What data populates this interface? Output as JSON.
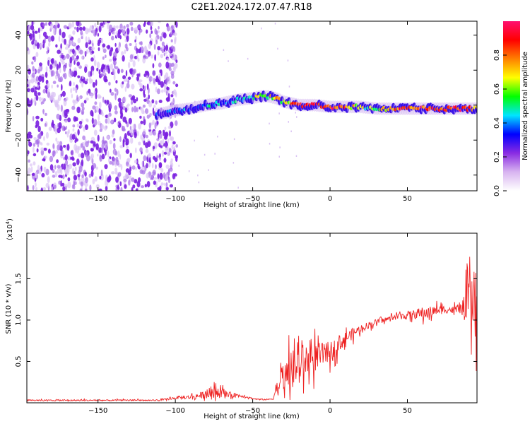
{
  "title": "C2E1.2024.172.07.47.R18",
  "chart_data": [
    {
      "type": "heatmap",
      "xlabel": "Height of straight line (km)",
      "ylabel": "Frequency (Hz)",
      "xlim": [
        -196,
        95
      ],
      "ylim": [
        -49,
        48
      ],
      "xticks": [
        -150,
        -100,
        -50,
        0,
        50
      ],
      "yticks": [
        -40,
        -20,
        0,
        20,
        40
      ],
      "colorbar": {
        "label": "Normalized spectral amplitude",
        "range": [
          0.0,
          1.0
        ],
        "ticks": [
          0.0,
          0.2,
          0.4,
          0.6,
          0.8
        ],
        "colormap": [
          "#ffffff",
          "#d8b4f0",
          "#8a2be2",
          "#0000ff",
          "#00e5ff",
          "#00ff00",
          "#ffff00",
          "#ff8000",
          "#ff0000",
          "#ff1070"
        ]
      },
      "ridge": {
        "x": [
          -120,
          -110,
          -100,
          -90,
          -80,
          -70,
          -60,
          -50,
          -45,
          -40,
          -35,
          -30,
          -20,
          -10,
          0,
          10,
          20,
          30,
          40,
          50,
          60,
          70,
          80,
          90,
          95
        ],
        "y": [
          -6,
          -5,
          -3,
          -2,
          0,
          1,
          3,
          4,
          5,
          5,
          4,
          2,
          0,
          0,
          -1,
          -1,
          -1,
          -2,
          -2,
          -2,
          -2,
          -2,
          -2,
          -2,
          -2
        ],
        "amplitude": [
          0.25,
          0.3,
          0.35,
          0.4,
          0.42,
          0.45,
          0.45,
          0.55,
          0.7,
          0.6,
          0.75,
          0.6,
          0.95,
          0.95,
          0.9,
          0.85,
          0.6,
          0.6,
          0.85,
          0.85,
          0.9,
          0.9,
          0.95,
          0.9,
          0.6
        ]
      },
      "noise_region": {
        "x_from": -196,
        "x_to": -105,
        "amplitude": 0.15
      }
    },
    {
      "type": "line",
      "xlabel": "Height of straight line (km)",
      "ylabel": "SNR (10 * v/v)",
      "y_multiplier": "(x10",
      "y_multiplier_exp": "4",
      "xlim": [
        -196,
        95
      ],
      "ylim": [
        0,
        2.05
      ],
      "xticks": [
        -150,
        -100,
        -50,
        0,
        50
      ],
      "yticks": [
        0.5,
        1.0,
        1.5
      ],
      "color": "#ee2222",
      "series": [
        {
          "x": [
            -196,
            -150,
            -110,
            -100,
            -90,
            -80,
            -75,
            -70,
            -65,
            -60,
            -55,
            -50,
            -45,
            -40,
            -37,
            -35,
            -30,
            -25,
            -20,
            -15,
            -10,
            -5,
            0,
            5,
            10,
            15,
            20,
            25,
            30,
            35,
            40,
            45,
            50,
            55,
            60,
            65,
            70,
            75,
            80,
            85,
            90,
            95
          ],
          "y": [
            0.03,
            0.03,
            0.03,
            0.06,
            0.07,
            0.1,
            0.14,
            0.12,
            0.1,
            0.09,
            0.08,
            0.05,
            0.04,
            0.04,
            0.05,
            0.15,
            0.3,
            0.38,
            0.45,
            0.52,
            0.55,
            0.58,
            0.62,
            0.7,
            0.78,
            0.84,
            0.9,
            0.94,
            0.98,
            1.0,
            1.03,
            1.05,
            1.06,
            1.07,
            1.08,
            1.1,
            1.12,
            1.13,
            1.12,
            1.14,
            1.15,
            1.13
          ],
          "spread": [
            0.01,
            0.01,
            0.01,
            0.02,
            0.03,
            0.06,
            0.12,
            0.07,
            0.04,
            0.03,
            0.02,
            0.01,
            0.01,
            0.01,
            0.02,
            0.1,
            0.2,
            0.3,
            0.32,
            0.25,
            0.22,
            0.18,
            0.15,
            0.12,
            0.1,
            0.08,
            0.06,
            0.05,
            0.04,
            0.03,
            0.04,
            0.05,
            0.06,
            0.07,
            0.1,
            0.08,
            0.07,
            0.06,
            0.06,
            0.08,
            0.4,
            0.45
          ]
        }
      ]
    }
  ]
}
